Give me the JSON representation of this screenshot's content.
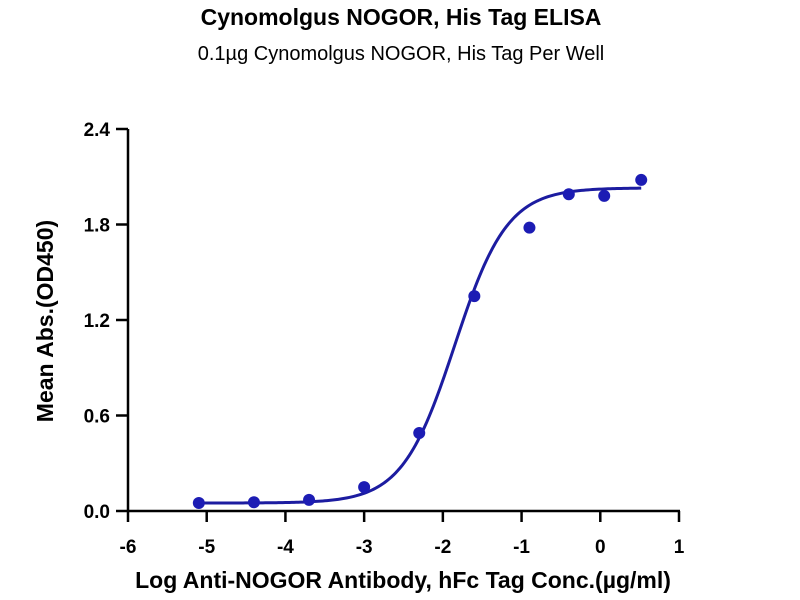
{
  "chart_data": {
    "type": "scatter",
    "title": "Cynomolgus NOGOR, His Tag ELISA",
    "subtitle": "0.1µg Cynomolgus NOGOR, His Tag Per Well",
    "xlabel": "Log Anti-NOGOR Antibody, hFc Tag Conc.(µg/ml)",
    "ylabel": "Mean Abs.(OD450)",
    "xlim": [
      -6,
      1
    ],
    "ylim": [
      0,
      2.4
    ],
    "xticks": [
      "-6",
      "-5",
      "-4",
      "-3",
      "-2",
      "-1",
      "0",
      "1"
    ],
    "yticks": [
      "0.0",
      "0.6",
      "1.2",
      "1.8",
      "2.4"
    ],
    "grid": false,
    "point_color": "#1c1cb4",
    "curve_color": "#1c1ca0",
    "series": [
      {
        "x": [
          -5.1,
          -4.4,
          -3.7,
          -3.0,
          -2.3,
          -1.6,
          -0.9,
          -0.4,
          0.05,
          0.52
        ],
        "y": [
          0.05,
          0.055,
          0.07,
          0.15,
          0.49,
          1.35,
          1.78,
          1.99,
          1.98,
          2.08
        ]
      }
    ],
    "fit": {
      "model": "4PL",
      "bottom": 0.05,
      "top": 2.03,
      "log_ec50": -1.85,
      "hill": 1.3
    }
  }
}
